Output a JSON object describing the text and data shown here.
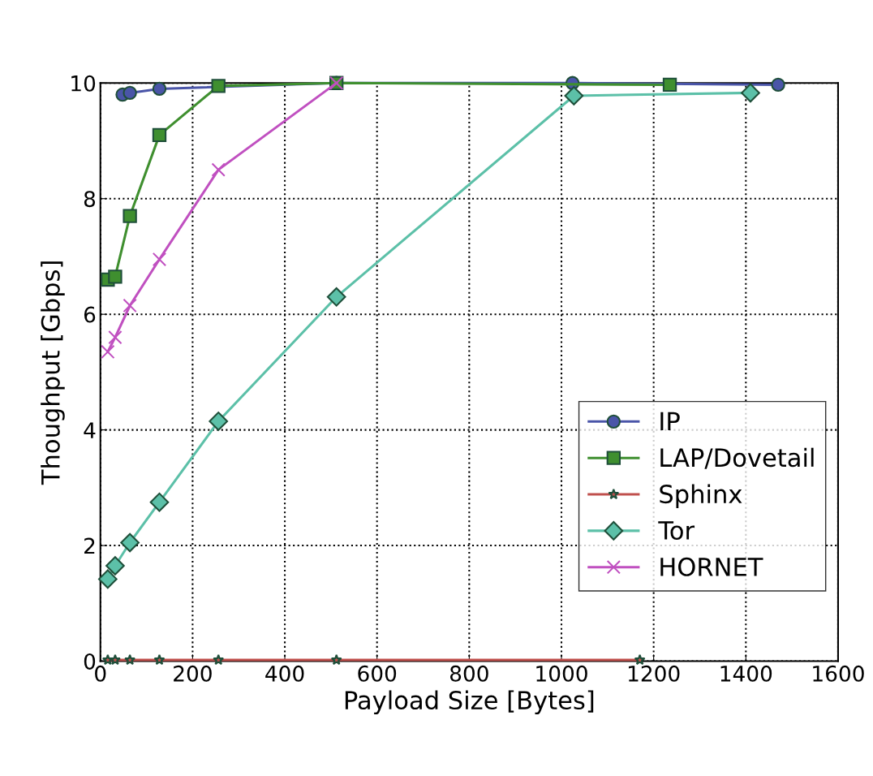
{
  "chart_data": {
    "type": "line",
    "xlabel": "Payload Size [Bytes]",
    "ylabel": "Thoughput [Gbps]",
    "xlim": [
      0,
      1600
    ],
    "xticks": [
      0,
      200,
      400,
      600,
      800,
      1000,
      1200,
      1400,
      1600
    ],
    "ylim": [
      0,
      10
    ],
    "yticks": [
      0,
      2,
      4,
      6,
      8,
      10
    ],
    "grid": true,
    "legend": "bottom right",
    "line_style": "solid",
    "series": [
      {
        "name": "IP",
        "color": "#4a55a8",
        "marker": "circle",
        "x": [
          48,
          64,
          128,
          512,
          1024,
          1470
        ],
        "values": [
          9.8,
          9.83,
          9.9,
          10,
          10,
          9.97
        ]
      },
      {
        "name": "LAP/Dovetail",
        "color": "#3f8f2f",
        "marker": "square",
        "x": [
          16,
          32,
          64,
          128,
          256,
          512,
          1235
        ],
        "values": [
          6.6,
          6.65,
          7.7,
          9.1,
          9.95,
          10,
          9.97
        ]
      },
      {
        "name": "Sphinx",
        "color": "#c0504d",
        "marker": "star",
        "x": [
          16,
          32,
          64,
          128,
          256,
          512,
          1170
        ],
        "values": [
          0.02,
          0.02,
          0.02,
          0.02,
          0.02,
          0.02,
          0.02
        ]
      },
      {
        "name": "Tor",
        "color": "#5cc0a8",
        "marker": "diamond",
        "x": [
          16,
          32,
          64,
          128,
          256,
          512,
          1027,
          1410
        ],
        "values": [
          1.42,
          1.65,
          2.05,
          2.75,
          4.15,
          6.3,
          9.78,
          9.83
        ]
      },
      {
        "name": "HORNET",
        "color": "#c050c0",
        "marker": "cross",
        "x": [
          16,
          32,
          64,
          128,
          256,
          512
        ],
        "values": [
          5.35,
          5.6,
          6.15,
          6.95,
          8.5,
          10
        ]
      }
    ]
  }
}
